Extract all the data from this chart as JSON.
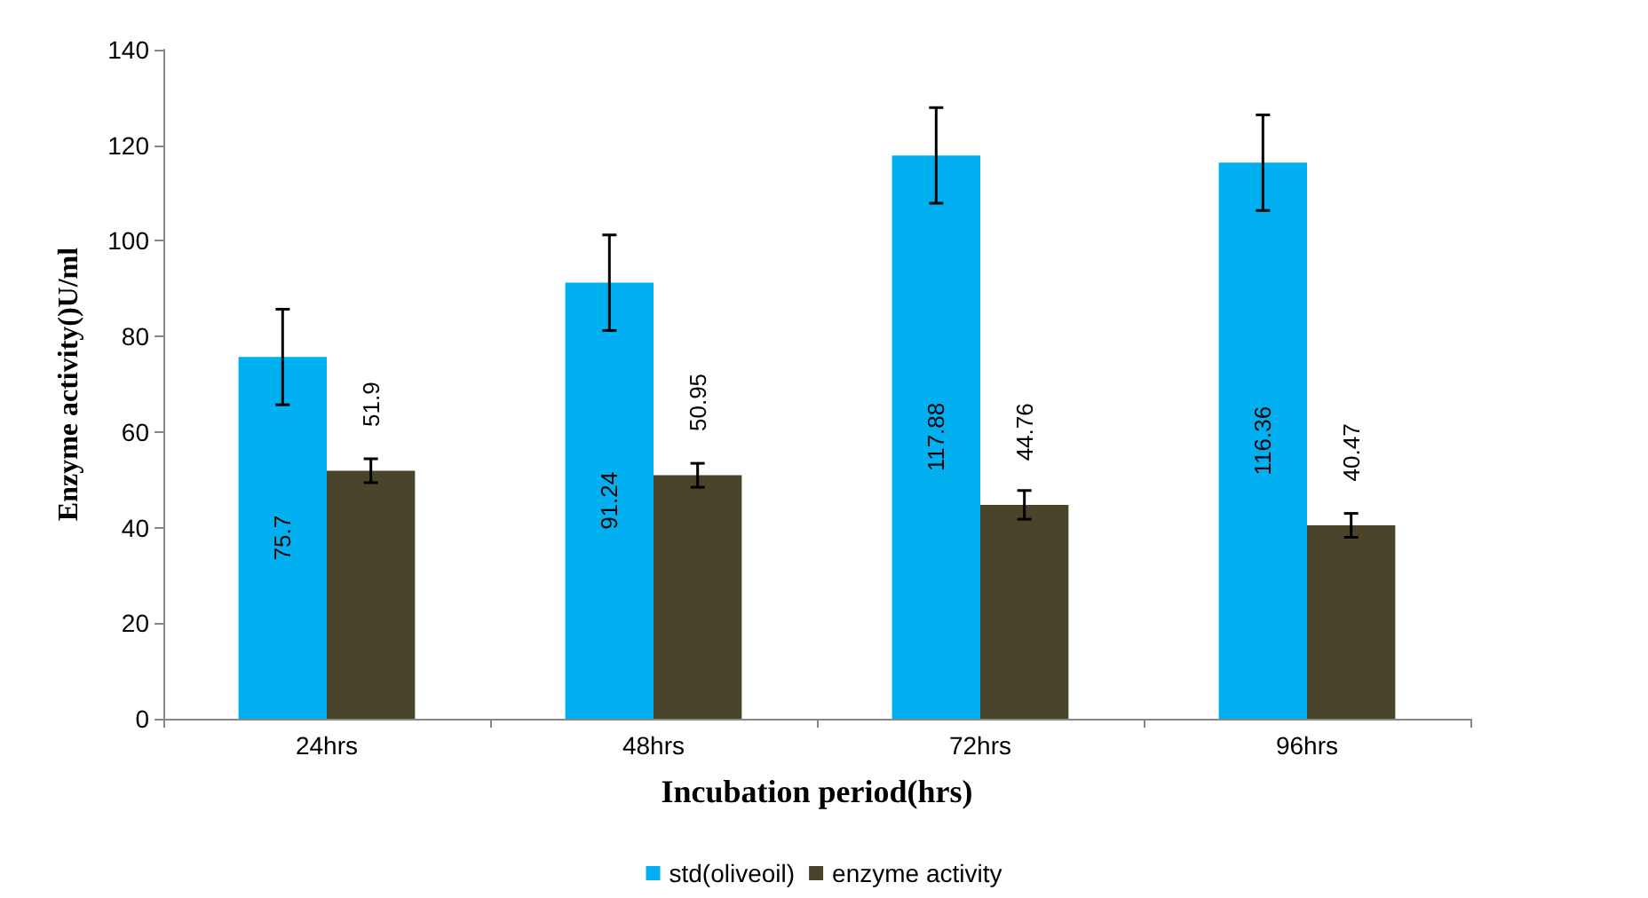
{
  "chart_data": {
    "type": "bar",
    "xlabel": "Incubation period(hrs)",
    "ylabel": "Enzyme activity()U/ml",
    "categories": [
      "24hrs",
      "48hrs",
      "72hrs",
      "96hrs"
    ],
    "series": [
      {
        "name": "std(oliveoil)",
        "color": "#00b0f0",
        "values": [
          75.7,
          91.24,
          117.88,
          116.36
        ],
        "errors": [
          10,
          10,
          10,
          10
        ]
      },
      {
        "name": "enzyme activity",
        "color": "#4a452a",
        "values": [
          51.9,
          50.95,
          44.76,
          40.47
        ],
        "errors": [
          2.5,
          2.5,
          3,
          2.5
        ]
      }
    ],
    "ylim": [
      0,
      140
    ],
    "yticks": [
      0,
      20,
      40,
      60,
      80,
      100,
      120,
      140
    ],
    "grid": false,
    "legend": "bottom",
    "data_labels": true
  }
}
